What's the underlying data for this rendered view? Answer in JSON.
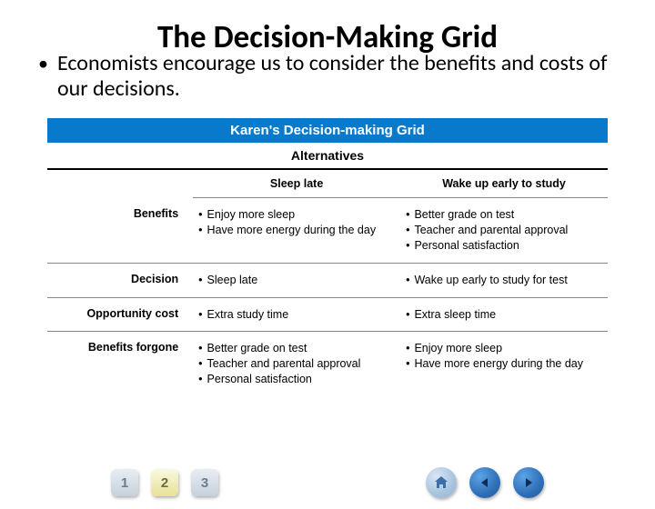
{
  "title": "The Decision-Making Grid",
  "bullet": "Economists encourage us to consider the benefits and costs of our decisions.",
  "grid": {
    "header": "Karen's Decision-making Grid",
    "alternatives_label": "Alternatives",
    "columns": {
      "sleep": "Sleep late",
      "wake": "Wake up early to study"
    },
    "rows": [
      {
        "label": "Benefits",
        "sleep": [
          "Enjoy more sleep",
          "Have more energy during the day"
        ],
        "wake": [
          "Better grade on test",
          "Teacher and parental approval",
          "Personal satisfaction"
        ]
      },
      {
        "label": "Decision",
        "sleep": [
          "Sleep late"
        ],
        "wake": [
          "Wake up early to study for test"
        ]
      },
      {
        "label": "Opportunity cost",
        "sleep": [
          "Extra study time"
        ],
        "wake": [
          "Extra sleep time"
        ]
      },
      {
        "label": "Benefits forgone",
        "sleep": [
          "Better grade on test",
          "Teacher and parental approval",
          "Personal satisfaction"
        ],
        "wake": [
          "Enjoy more sleep",
          "Have more energy during the day"
        ]
      }
    ]
  },
  "nav": {
    "pages": [
      "1",
      "2",
      "3"
    ],
    "active_page_index": 1
  },
  "colors": {
    "header_bg": "#0879cb",
    "header_text": "#ffffff"
  }
}
